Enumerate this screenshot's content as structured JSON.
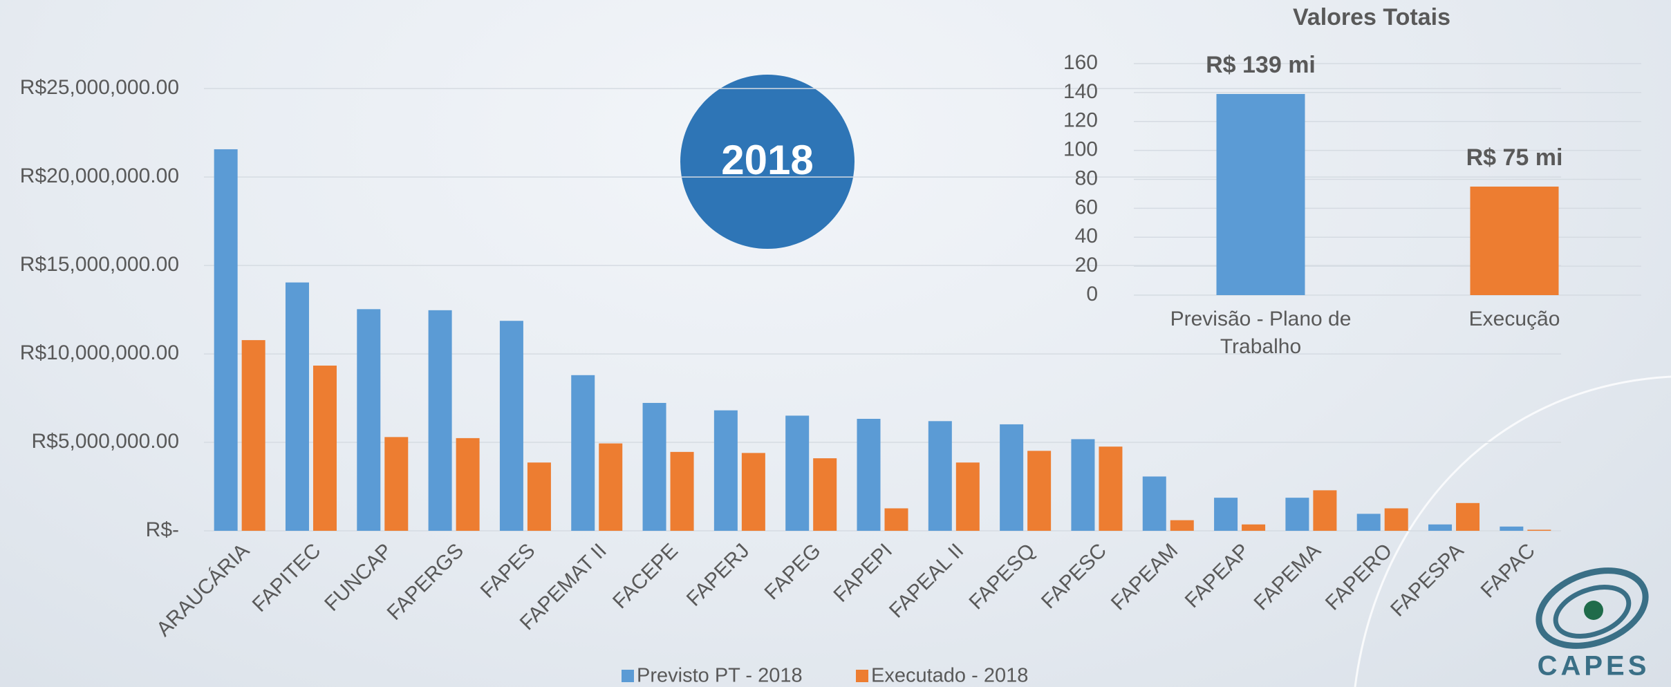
{
  "chart_data": [
    {
      "type": "bar",
      "categories": [
        "ARAUCÁRIA",
        "FAPITEC",
        "FUNCAP",
        "FAPERGS",
        "FAPES",
        "FAPEMAT II",
        "FACEPE",
        "FAPERJ",
        "FAPEG",
        "FAPEPI",
        "FAPEAL II",
        "FAPESQ",
        "FAPESC",
        "FAPEAM",
        "FAPEAP",
        "FAPEMA",
        "FAPERO",
        "FAPESPA",
        "FAPAC"
      ],
      "series": [
        {
          "name": "Previsto PT - 2018",
          "color": "#5b9bd5",
          "values": [
            21570000,
            14040000,
            12530000,
            12470000,
            11870000,
            8800000,
            7230000,
            6810000,
            6510000,
            6330000,
            6200000,
            6020000,
            5180000,
            3070000,
            1870000,
            1870000,
            960000,
            360000,
            240000
          ]
        },
        {
          "name": "Executado - 2018",
          "color": "#ed7d31",
          "values": [
            10780000,
            9340000,
            5300000,
            5240000,
            3860000,
            4940000,
            4460000,
            4400000,
            4100000,
            1270000,
            3860000,
            4520000,
            4760000,
            600000,
            360000,
            2290000,
            1270000,
            1570000,
            60000
          ]
        }
      ],
      "ylim": [
        0,
        27000000
      ],
      "yticks": [
        {
          "value": 0,
          "label": "R$-"
        },
        {
          "value": 5000000,
          "label": "R$5,000,000.00"
        },
        {
          "value": 10000000,
          "label": "R$10,000,000.00"
        },
        {
          "value": 15000000,
          "label": "R$15,000,000.00"
        },
        {
          "value": 20000000,
          "label": "R$20,000,000.00"
        },
        {
          "value": 25000000,
          "label": "R$25,000,000.00"
        }
      ],
      "grid": true,
      "legend": "bottom"
    },
    {
      "type": "bar",
      "title": "Valores Totais",
      "categories": [
        "Previsão - Plano de Trabalho",
        "Execução"
      ],
      "values": [
        139,
        75
      ],
      "value_labels": [
        "R$ 139 mi",
        "R$ 75 mi"
      ],
      "colors": [
        "#5b9bd5",
        "#ed7d31"
      ],
      "ylim": [
        0,
        160
      ],
      "yticks": [
        0,
        20,
        40,
        60,
        80,
        100,
        120,
        140,
        160
      ],
      "grid": true
    }
  ],
  "badge": "2018",
  "logo": "CAPES"
}
